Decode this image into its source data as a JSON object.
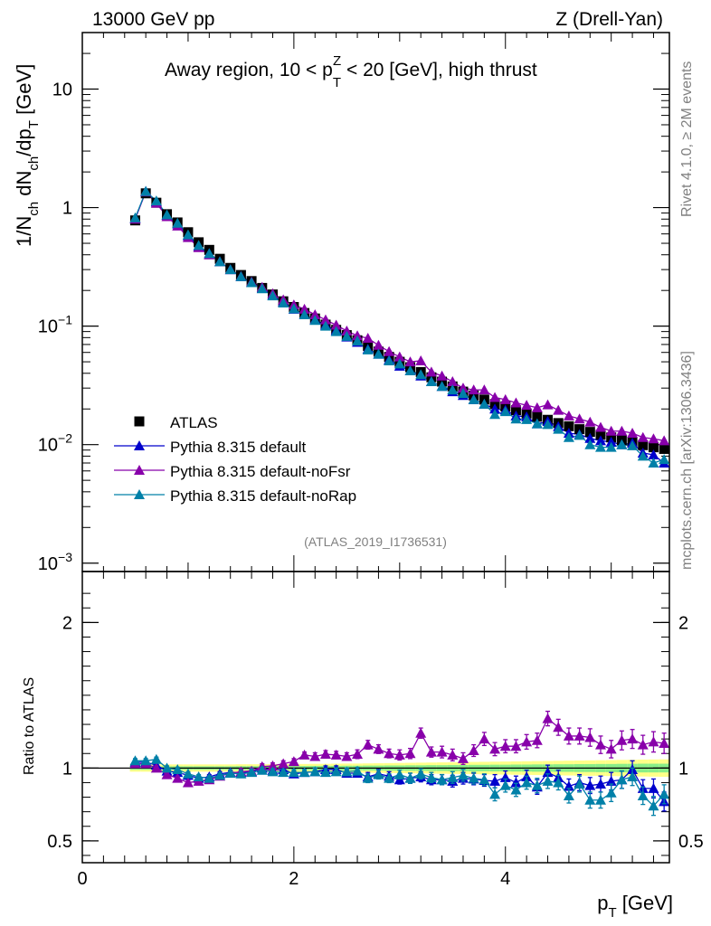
{
  "header": {
    "left": "13000 GeV pp",
    "right": "Z (Drell-Yan)"
  },
  "side_labels": {
    "rivet": "Rivet 4.1.0, ≥ 2M events",
    "mcplots": "mcplots.cern.ch [arXiv:1306.3436]"
  },
  "watermark": "(ATLAS_2019_I1736531)",
  "colors": {
    "atlas": "#000000",
    "default": "#0000cc",
    "noFsr": "#8800aa",
    "noRap": "#0080a8",
    "band_inner": "#88ee88",
    "band_outer": "#ffff88"
  },
  "chart_data": [
    {
      "type": "scatter",
      "title": "Away region, 10 < p_T^Z < 20 [GeV], high thrust",
      "title_parts": {
        "pre": "Away region, 10 < p",
        "sup": "Z",
        "sub": "T",
        "post": " < 20 [GeV], high thrust"
      },
      "ylabel": "1/N_ch dN_ch/dp_T [GeV]",
      "ylabel_parts": {
        "a": "1/N",
        "b": "ch",
        "c": " dN",
        "d": "ch",
        "e": "/dp",
        "f": "T",
        "g": " [GeV]"
      },
      "yscale": "log",
      "xlim": [
        0,
        5.55
      ],
      "ylim": [
        0.00085,
        30
      ],
      "yticks": [
        {
          "value": 10,
          "base": "10",
          "exp": ""
        },
        {
          "value": 1,
          "base": "1",
          "exp": ""
        },
        {
          "value": 0.1,
          "base": "10",
          "exp": "−1"
        },
        {
          "value": 0.01,
          "base": "10",
          "exp": "−2"
        },
        {
          "value": 0.001,
          "base": "10",
          "exp": "−3"
        }
      ],
      "legend": [
        "ATLAS",
        "Pythia 8.315 default",
        "Pythia 8.315 default-noFsr",
        "Pythia 8.315 default-noRap"
      ],
      "x": [
        0.5,
        0.6,
        0.7,
        0.8,
        0.9,
        1.0,
        1.1,
        1.2,
        1.3,
        1.4,
        1.5,
        1.6,
        1.7,
        1.8,
        1.9,
        2.0,
        2.1,
        2.2,
        2.3,
        2.4,
        2.5,
        2.6,
        2.7,
        2.8,
        2.9,
        3.0,
        3.1,
        3.2,
        3.3,
        3.4,
        3.5,
        3.6,
        3.7,
        3.8,
        3.9,
        4.0,
        4.1,
        4.2,
        4.3,
        4.4,
        4.5,
        4.6,
        4.7,
        4.8,
        4.9,
        5.0,
        5.1,
        5.2,
        5.3,
        5.4,
        5.5
      ],
      "series": [
        {
          "name": "ATLAS",
          "marker": "square",
          "values": [
            0.78,
            1.32,
            1.1,
            0.88,
            0.75,
            0.62,
            0.51,
            0.44,
            0.37,
            0.31,
            0.27,
            0.24,
            0.21,
            0.185,
            0.162,
            0.145,
            0.129,
            0.116,
            0.103,
            0.093,
            0.084,
            0.076,
            0.068,
            0.061,
            0.055,
            0.05,
            0.045,
            0.041,
            0.037,
            0.034,
            0.031,
            0.028,
            0.026,
            0.024,
            0.022,
            0.021,
            0.0195,
            0.0183,
            0.0172,
            0.0162,
            0.0152,
            0.0143,
            0.0135,
            0.0128,
            0.0121,
            0.0115,
            0.0109,
            0.0104,
            0.0099,
            0.0095,
            0.0092
          ]
        },
        {
          "name": "Pythia 8.315 default",
          "marker": "triangle",
          "values": [
            0.81,
            1.37,
            1.12,
            0.86,
            0.73,
            0.58,
            0.47,
            0.41,
            0.35,
            0.3,
            0.262,
            0.234,
            0.21,
            0.182,
            0.16,
            0.139,
            0.125,
            0.113,
            0.102,
            0.092,
            0.081,
            0.073,
            0.064,
            0.058,
            0.052,
            0.046,
            0.042,
            0.038,
            0.034,
            0.031,
            0.028,
            0.026,
            0.024,
            0.022,
            0.02,
            0.0196,
            0.0175,
            0.0172,
            0.015,
            0.0157,
            0.0142,
            0.0125,
            0.0122,
            0.0113,
            0.0108,
            0.0105,
            0.01,
            0.0103,
            0.0085,
            0.0082,
            0.007
          ]
        },
        {
          "name": "Pythia 8.315 default-noFsr",
          "marker": "triangle",
          "values": [
            0.8,
            1.36,
            1.09,
            0.84,
            0.7,
            0.56,
            0.46,
            0.4,
            0.35,
            0.3,
            0.263,
            0.236,
            0.213,
            0.188,
            0.167,
            0.151,
            0.139,
            0.125,
            0.113,
            0.102,
            0.091,
            0.083,
            0.079,
            0.069,
            0.061,
            0.055,
            0.05,
            0.051,
            0.041,
            0.038,
            0.034,
            0.03,
            0.029,
            0.029,
            0.025,
            0.024,
            0.0225,
            0.0215,
            0.0205,
            0.0217,
            0.0195,
            0.0175,
            0.0165,
            0.0155,
            0.014,
            0.013,
            0.013,
            0.0125,
            0.0115,
            0.0112,
            0.0108
          ]
        },
        {
          "name": "Pythia 8.315 default-noRap",
          "marker": "triangle",
          "values": [
            0.82,
            1.37,
            1.14,
            0.87,
            0.74,
            0.59,
            0.48,
            0.41,
            0.35,
            0.3,
            0.262,
            0.233,
            0.207,
            0.18,
            0.157,
            0.14,
            0.125,
            0.112,
            0.1,
            0.09,
            0.082,
            0.075,
            0.063,
            0.058,
            0.051,
            0.048,
            0.042,
            0.039,
            0.034,
            0.031,
            0.029,
            0.027,
            0.024,
            0.022,
            0.018,
            0.019,
            0.0165,
            0.0163,
            0.015,
            0.0148,
            0.0135,
            0.0115,
            0.012,
            0.01,
            0.0095,
            0.0095,
            0.01,
            0.0098,
            0.008,
            0.007,
            0.0075
          ]
        }
      ]
    },
    {
      "type": "scatter",
      "title": "",
      "xlabel": "p_T [GeV]",
      "xlabel_parts": {
        "a": "p",
        "b": "T",
        "c": " [GeV]"
      },
      "ylabel": "Ratio to ATLAS",
      "xlim": [
        0,
        5.55
      ],
      "ylim": [
        0.35,
        2.35
      ],
      "xticks": [
        0,
        2,
        4
      ],
      "yticks": [
        {
          "value": 0.5,
          "label": "0.5"
        },
        {
          "value": 1,
          "label": "1"
        },
        {
          "value": 2,
          "label": "2"
        }
      ],
      "x": [
        0.5,
        0.6,
        0.7,
        0.8,
        0.9,
        1.0,
        1.1,
        1.2,
        1.3,
        1.4,
        1.5,
        1.6,
        1.7,
        1.8,
        1.9,
        2.0,
        2.1,
        2.2,
        2.3,
        2.4,
        2.5,
        2.6,
        2.7,
        2.8,
        2.9,
        3.0,
        3.1,
        3.2,
        3.3,
        3.4,
        3.5,
        3.6,
        3.7,
        3.8,
        3.9,
        4.0,
        4.1,
        4.2,
        4.3,
        4.4,
        4.5,
        4.6,
        4.7,
        4.8,
        4.9,
        5.0,
        5.1,
        5.2,
        5.3,
        5.4,
        5.5
      ],
      "band": {
        "inner": [
          0.012,
          0.012,
          0.012,
          0.012,
          0.012,
          0.012,
          0.012,
          0.012,
          0.012,
          0.012,
          0.013,
          0.013,
          0.013,
          0.013,
          0.014,
          0.014,
          0.014,
          0.015,
          0.015,
          0.015,
          0.016,
          0.016,
          0.017,
          0.017,
          0.018,
          0.018,
          0.019,
          0.019,
          0.02,
          0.02,
          0.021,
          0.021,
          0.022,
          0.022,
          0.023,
          0.023,
          0.024,
          0.024,
          0.025,
          0.025,
          0.026,
          0.026,
          0.027,
          0.027,
          0.028,
          0.028,
          0.029,
          0.029,
          0.03,
          0.03,
          0.03
        ],
        "outer": [
          0.025,
          0.025,
          0.025,
          0.025,
          0.025,
          0.025,
          0.025,
          0.025,
          0.025,
          0.025,
          0.026,
          0.026,
          0.026,
          0.027,
          0.027,
          0.028,
          0.028,
          0.029,
          0.029,
          0.03,
          0.031,
          0.031,
          0.032,
          0.033,
          0.034,
          0.035,
          0.036,
          0.037,
          0.038,
          0.039,
          0.04,
          0.041,
          0.042,
          0.043,
          0.044,
          0.045,
          0.046,
          0.047,
          0.048,
          0.049,
          0.05,
          0.051,
          0.052,
          0.053,
          0.054,
          0.055,
          0.056,
          0.057,
          0.058,
          0.059,
          0.06
        ]
      },
      "series": [
        {
          "name": "Pythia 8.315 default",
          "values": [
            1.04,
            1.04,
            1.02,
            0.98,
            0.97,
            0.95,
            0.93,
            0.94,
            0.96,
            0.97,
            0.97,
            0.975,
            1.0,
            0.985,
            0.99,
            0.96,
            0.97,
            0.975,
            0.99,
            0.99,
            0.965,
            0.965,
            0.94,
            0.96,
            0.945,
            0.92,
            0.93,
            0.94,
            0.92,
            0.92,
            0.91,
            0.93,
            0.925,
            0.915,
            0.91,
            0.935,
            0.9,
            0.94,
            0.87,
            0.97,
            0.935,
            0.875,
            0.9,
            0.88,
            0.89,
            0.91,
            0.92,
            0.99,
            0.86,
            0.86,
            0.77
          ],
          "errors": [
            0.015,
            0.015,
            0.015,
            0.015,
            0.015,
            0.015,
            0.015,
            0.015,
            0.015,
            0.015,
            0.02,
            0.02,
            0.02,
            0.02,
            0.02,
            0.02,
            0.02,
            0.025,
            0.025,
            0.025,
            0.025,
            0.025,
            0.03,
            0.03,
            0.03,
            0.03,
            0.035,
            0.035,
            0.035,
            0.035,
            0.04,
            0.04,
            0.04,
            0.04,
            0.045,
            0.045,
            0.045,
            0.045,
            0.05,
            0.05,
            0.05,
            0.05,
            0.055,
            0.055,
            0.055,
            0.06,
            0.06,
            0.06,
            0.06,
            0.065,
            0.065
          ]
        },
        {
          "name": "Pythia 8.315 default-noFsr",
          "values": [
            1.03,
            1.03,
            1.0,
            0.955,
            0.93,
            0.9,
            0.91,
            0.92,
            0.945,
            0.965,
            0.975,
            0.98,
            1.01,
            1.015,
            1.03,
            1.045,
            1.09,
            1.08,
            1.095,
            1.09,
            1.08,
            1.095,
            1.16,
            1.13,
            1.1,
            1.09,
            1.1,
            1.24,
            1.11,
            1.11,
            1.09,
            1.065,
            1.12,
            1.2,
            1.13,
            1.15,
            1.15,
            1.18,
            1.19,
            1.34,
            1.28,
            1.22,
            1.22,
            1.21,
            1.16,
            1.13,
            1.19,
            1.2,
            1.16,
            1.18,
            1.17
          ],
          "errors": [
            0.015,
            0.015,
            0.015,
            0.015,
            0.015,
            0.015,
            0.015,
            0.015,
            0.015,
            0.015,
            0.02,
            0.02,
            0.02,
            0.02,
            0.02,
            0.02,
            0.02,
            0.025,
            0.025,
            0.025,
            0.025,
            0.03,
            0.03,
            0.03,
            0.03,
            0.035,
            0.035,
            0.035,
            0.035,
            0.04,
            0.04,
            0.04,
            0.04,
            0.045,
            0.045,
            0.045,
            0.045,
            0.05,
            0.05,
            0.05,
            0.055,
            0.055,
            0.055,
            0.06,
            0.06,
            0.06,
            0.065,
            0.065,
            0.065,
            0.07,
            0.07
          ]
        },
        {
          "name": "Pythia 8.315 default-noRap",
          "values": [
            1.05,
            1.05,
            1.06,
            1.0,
            0.99,
            0.96,
            0.94,
            0.93,
            0.95,
            0.965,
            0.96,
            0.97,
            0.985,
            0.975,
            0.97,
            0.97,
            0.97,
            0.975,
            0.97,
            0.975,
            0.975,
            0.98,
            0.93,
            0.955,
            0.93,
            0.955,
            0.93,
            0.96,
            0.935,
            0.92,
            0.935,
            0.95,
            0.93,
            0.92,
            0.82,
            0.88,
            0.85,
            0.9,
            0.88,
            0.91,
            0.9,
            0.81,
            0.89,
            0.78,
            0.78,
            0.83,
            0.92,
            0.94,
            0.81,
            0.74,
            0.82
          ],
          "errors": [
            0.015,
            0.015,
            0.015,
            0.015,
            0.015,
            0.015,
            0.015,
            0.015,
            0.015,
            0.015,
            0.02,
            0.02,
            0.02,
            0.02,
            0.02,
            0.02,
            0.02,
            0.025,
            0.025,
            0.025,
            0.025,
            0.025,
            0.03,
            0.03,
            0.03,
            0.03,
            0.035,
            0.035,
            0.035,
            0.035,
            0.04,
            0.04,
            0.04,
            0.04,
            0.045,
            0.045,
            0.045,
            0.045,
            0.05,
            0.05,
            0.05,
            0.05,
            0.055,
            0.055,
            0.055,
            0.06,
            0.06,
            0.06,
            0.06,
            0.065,
            0.065
          ]
        }
      ]
    }
  ]
}
